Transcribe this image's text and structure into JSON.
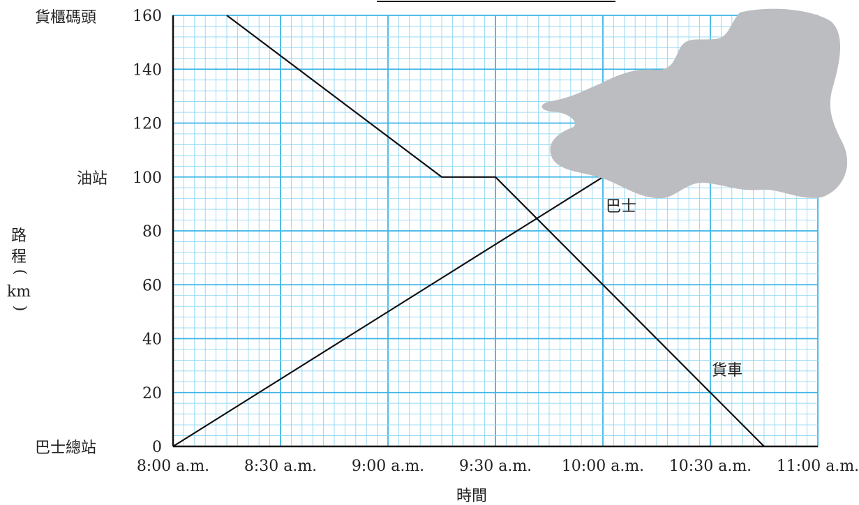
{
  "chart_data": {
    "type": "line",
    "title": "",
    "xlabel": "時間",
    "ylabel": [
      "路",
      "程",
      "(",
      "km",
      ")"
    ],
    "x_ticks": [
      "8:00 a.m.",
      "8:30 a.m.",
      "9:00 a.m.",
      "9:30 a.m.",
      "10:00 a.m.",
      "10:30 a.m.",
      "11:00 a.m."
    ],
    "y_ticks": [
      0,
      20,
      40,
      60,
      80,
      100,
      120,
      140,
      160
    ],
    "y_place_labels": [
      {
        "value": 160,
        "label": "貨櫃碼頭"
      },
      {
        "value": 100,
        "label": "油站"
      },
      {
        "value": 0,
        "label": "巴士總站"
      }
    ],
    "xlim": [
      "8:00 a.m.",
      "11:00 a.m."
    ],
    "ylim": [
      0,
      160
    ],
    "grid": true,
    "series": [
      {
        "name": "貨車",
        "points": [
          {
            "x": "8:15 a.m.",
            "y": 160
          },
          {
            "x": "9:15 a.m.",
            "y": 100
          },
          {
            "x": "9:30 a.m.",
            "y": 100
          },
          {
            "x": "10:45 a.m.",
            "y": 0
          }
        ]
      },
      {
        "name": "巴士",
        "points": [
          {
            "x": "8:00 a.m.",
            "y": 0
          },
          {
            "x": "10:00 a.m.",
            "y": 100
          }
        ]
      }
    ]
  },
  "colors": {
    "grid_major": "#3cb4e6",
    "grid_minor": "#8ed6f2",
    "line": "#111111",
    "blob": "#bcbdc0"
  }
}
